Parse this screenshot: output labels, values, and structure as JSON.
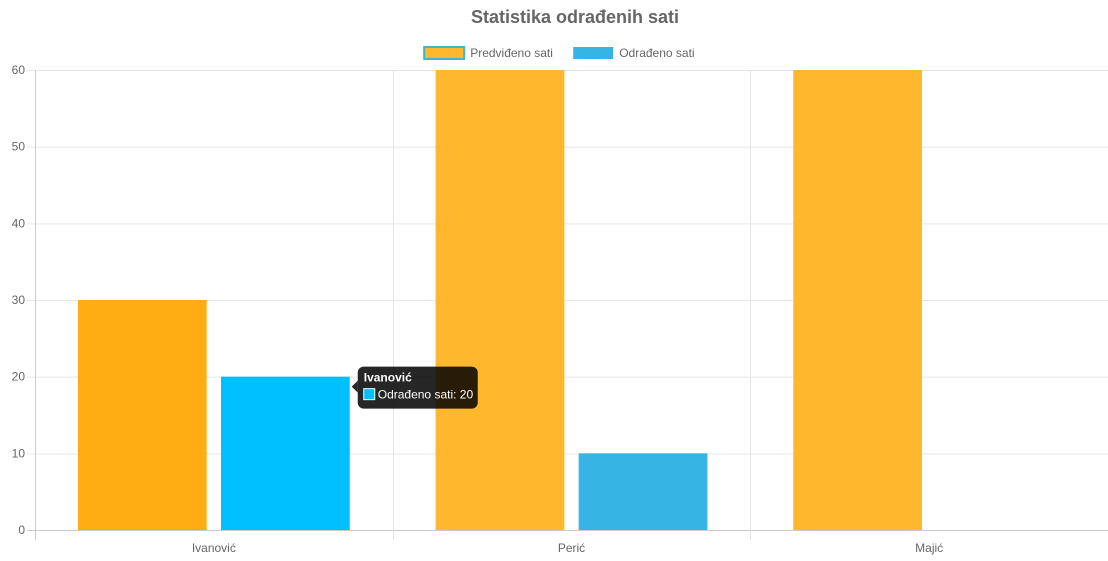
{
  "chart_data": {
    "type": "bar",
    "title": "Statistika odrađenih sati",
    "xlabel": "",
    "ylabel": "",
    "categories": [
      "Ivanović",
      "Perić",
      "Majić"
    ],
    "ylim": [
      0,
      60
    ],
    "yticks": [
      0,
      10,
      20,
      30,
      40,
      50,
      60
    ],
    "grid": true,
    "legend_position": "top-center",
    "series": [
      {
        "name": "Predviđeno sati",
        "values": [
          30,
          60,
          60
        ],
        "color": "#FFB82E",
        "highlight_color": "#FFAD12",
        "border_color": "#3FB6C9"
      },
      {
        "name": "Odrađeno sati",
        "values": [
          20,
          10,
          0
        ],
        "color": "#36B5E5",
        "highlight_color": "#00BFFF"
      }
    ],
    "tooltip": {
      "category_index": 0,
      "series_index": 1,
      "title": "Ivanović",
      "label": "Odrađeno sati: 20"
    }
  }
}
